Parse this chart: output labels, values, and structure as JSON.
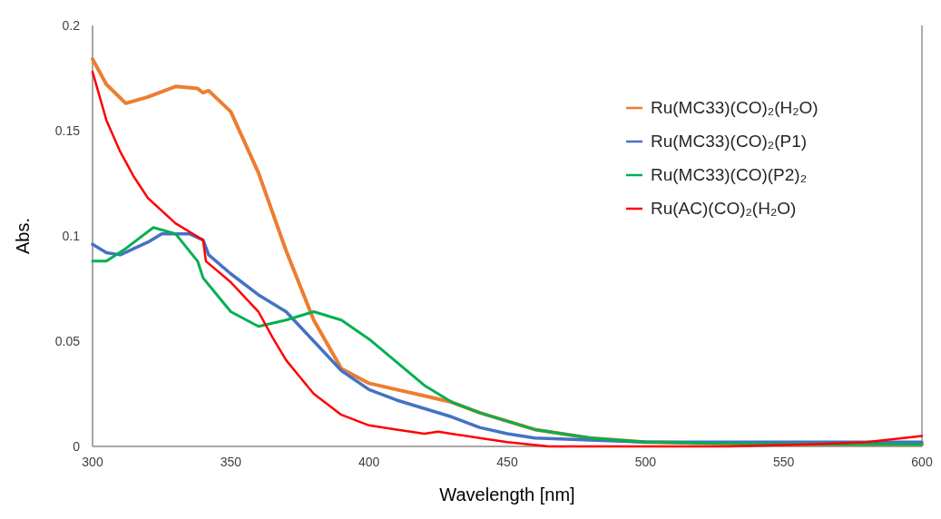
{
  "chart_data": {
    "type": "line",
    "xlabel": "Wavelength [nm]",
    "ylabel": "Abs.",
    "xlim": [
      300,
      600
    ],
    "xticks": [
      300,
      350,
      400,
      450,
      500,
      550,
      600
    ],
    "ylim": [
      0,
      0.2
    ],
    "yticks": [
      0,
      0.05,
      0.1,
      0.15,
      0.2
    ],
    "grid": false,
    "legend": "top right",
    "marker": "none",
    "line_style": "solid",
    "series": [
      {
        "name": "Ru(MC33)(CO)₂(H₂O)",
        "color": "#ed7d31",
        "x": [
          300,
          305,
          312,
          320,
          330,
          338,
          340,
          342,
          350,
          360,
          370,
          380,
          390,
          400,
          410,
          420,
          430,
          440,
          450,
          460,
          480,
          500,
          550,
          600
        ],
        "values": [
          0.184,
          0.172,
          0.163,
          0.166,
          0.171,
          0.17,
          0.168,
          0.169,
          0.159,
          0.13,
          0.093,
          0.06,
          0.037,
          0.03,
          0.027,
          0.024,
          0.021,
          0.016,
          0.012,
          0.008,
          0.004,
          0.002,
          0.001,
          0.001
        ]
      },
      {
        "name": "Ru(MC33)(CO)₂(P1)",
        "color": "#4472c4",
        "x": [
          300,
          305,
          310,
          320,
          325,
          335,
          340,
          342,
          350,
          360,
          370,
          380,
          390,
          400,
          410,
          420,
          430,
          440,
          450,
          460,
          480,
          500,
          600
        ],
        "values": [
          0.096,
          0.092,
          0.091,
          0.097,
          0.101,
          0.101,
          0.098,
          0.091,
          0.082,
          0.072,
          0.064,
          0.05,
          0.036,
          0.027,
          0.022,
          0.018,
          0.014,
          0.009,
          0.006,
          0.004,
          0.003,
          0.002,
          0.002
        ]
      },
      {
        "name": "Ru(MC33)(CO)(P2)₂",
        "color": "#00b050",
        "x": [
          300,
          305,
          312,
          322,
          330,
          338,
          340,
          345,
          350,
          360,
          370,
          380,
          390,
          400,
          410,
          420,
          430,
          440,
          450,
          460,
          470,
          480,
          500,
          550,
          600
        ],
        "values": [
          0.088,
          0.088,
          0.094,
          0.104,
          0.101,
          0.088,
          0.08,
          0.072,
          0.064,
          0.057,
          0.06,
          0.064,
          0.06,
          0.051,
          0.04,
          0.029,
          0.021,
          0.016,
          0.012,
          0.008,
          0.006,
          0.004,
          0.002,
          0.001,
          0.001
        ]
      },
      {
        "name": "Ru(AC)(CO)₂(H₂O)",
        "color": "#ff0000",
        "x": [
          300,
          305,
          310,
          315,
          320,
          330,
          340,
          341,
          350,
          360,
          365,
          370,
          375,
          380,
          390,
          400,
          410,
          420,
          425,
          440,
          450,
          465,
          500,
          530,
          560,
          580,
          600
        ],
        "values": [
          0.178,
          0.155,
          0.14,
          0.128,
          0.118,
          0.106,
          0.098,
          0.088,
          0.078,
          0.064,
          0.052,
          0.041,
          0.033,
          0.025,
          0.015,
          0.01,
          0.008,
          0.006,
          0.007,
          0.004,
          0.002,
          0.0,
          0.0,
          0.0,
          0.001,
          0.002,
          0.005
        ]
      }
    ]
  }
}
